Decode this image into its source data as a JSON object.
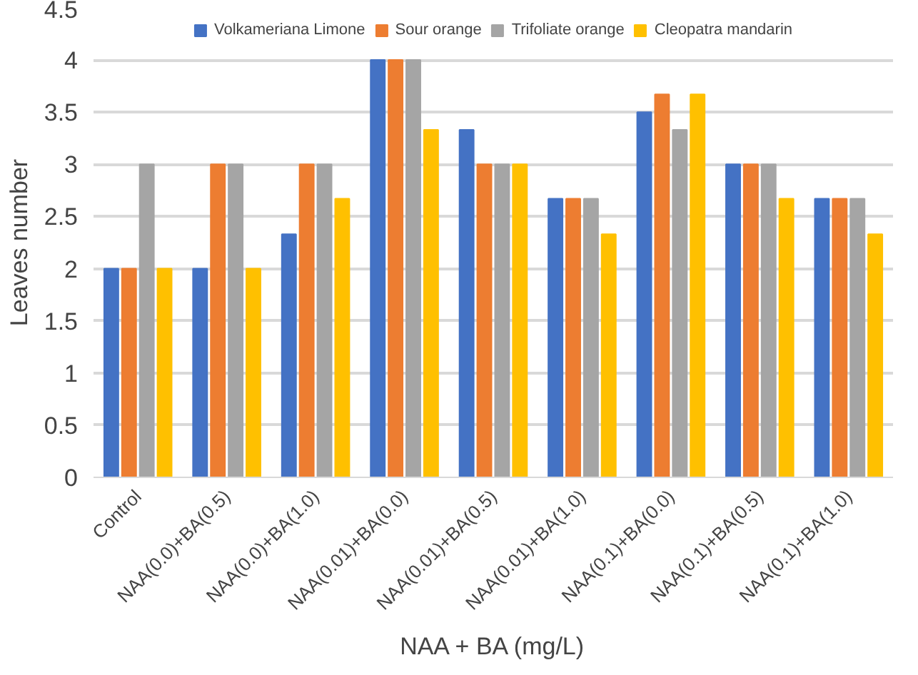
{
  "chart_data": {
    "type": "bar",
    "xlabel": "NAA + BA (mg/L)",
    "ylabel": "Leaves number",
    "categories": [
      "Control",
      "NAA(0.0)+BA(0.5)",
      "NAA(0.0)+BA(1.0)",
      "NAA(0.01)+BA(0.0)",
      "NAA(0.01)+BA(0.5)",
      "NAA(0.01)+BA(1.0)",
      "NAA(0.1)+BA(0.0)",
      "NAA(0.1)+BA(0.5)",
      "NAA(0.1)+BA(1.0)"
    ],
    "series": [
      {
        "name": "Volkameriana Limone",
        "color": "#4472c4",
        "values": [
          2,
          2,
          2.33,
          4,
          3.33,
          2.67,
          3.5,
          3,
          2.67
        ]
      },
      {
        "name": "Sour orange",
        "color": "#ed7d31",
        "values": [
          2,
          3,
          3,
          4,
          3,
          2.67,
          3.67,
          3,
          2.67
        ]
      },
      {
        "name": "Trifoliate orange",
        "color": "#a5a5a5",
        "values": [
          3,
          3,
          3,
          4,
          3,
          2.67,
          3.33,
          3,
          2.67
        ]
      },
      {
        "name": "Cleopatra mandarin",
        "color": "#ffc000",
        "values": [
          2,
          2,
          2.67,
          3.33,
          3,
          2.33,
          3.67,
          2.67,
          2.33
        ]
      }
    ],
    "ylim": [
      0,
      4.5
    ],
    "yticks": [
      0,
      0.5,
      1,
      1.5,
      2,
      2.5,
      3,
      3.5,
      4,
      4.5
    ],
    "grid": "y",
    "legend": "top"
  }
}
